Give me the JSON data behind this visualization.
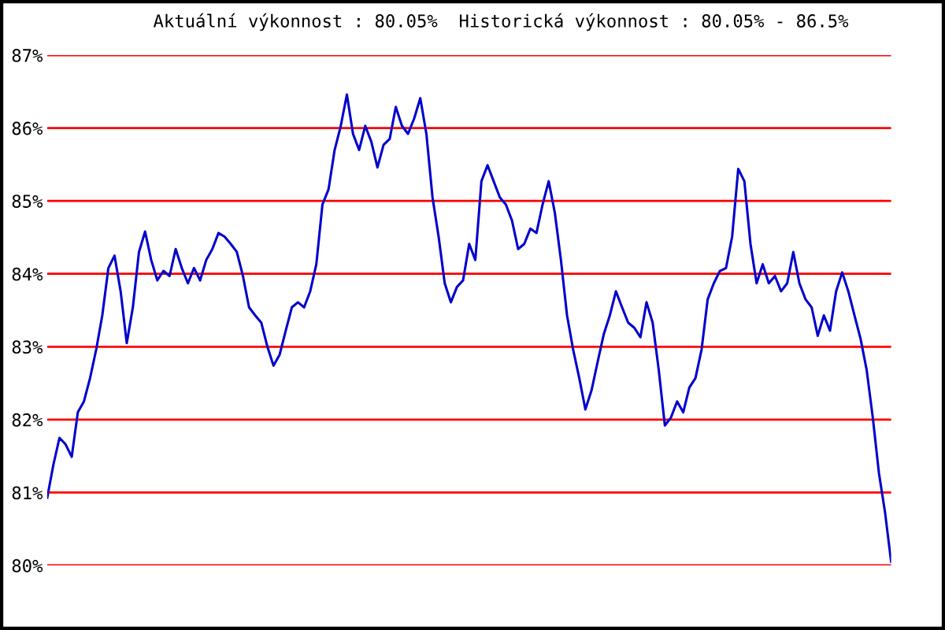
{
  "chart_data": {
    "type": "line",
    "title": "Aktuální výkonnost : 80.05%  Historická výkonnost : 80.05% - 86.5%",
    "categories": [
      null,
      null,
      null,
      null,
      null,
      null,
      null,
      null,
      null,
      null,
      null,
      null,
      null,
      null,
      null,
      null,
      null,
      null,
      null,
      null,
      null,
      null,
      null,
      null,
      null,
      null,
      null,
      null,
      null,
      null,
      null,
      null,
      null,
      null,
      null,
      null,
      null,
      null,
      null,
      null,
      null,
      null,
      null,
      null,
      null,
      null,
      null,
      null,
      null,
      null,
      null,
      null,
      null,
      null,
      null,
      null,
      null,
      null,
      null,
      null,
      null,
      null,
      null,
      null,
      null,
      null,
      null,
      null,
      null,
      null,
      null,
      null,
      null,
      null,
      null,
      null,
      null,
      null,
      null,
      null,
      null,
      null,
      null,
      null,
      null,
      null,
      null,
      null,
      null,
      null,
      null,
      null,
      null,
      null,
      null,
      null,
      null,
      null,
      null,
      null,
      null,
      null,
      null,
      null,
      null,
      null,
      null,
      null,
      null,
      null,
      null,
      null,
      null,
      null,
      null,
      null,
      null,
      null,
      null,
      null,
      null,
      null,
      null,
      null,
      null,
      null,
      null,
      null,
      null,
      null,
      null,
      null,
      null,
      null,
      null,
      null,
      null,
      null,
      null
    ],
    "series": [
      {
        "color": "#0000cc",
        "values": [
          80.93,
          81.38,
          81.75,
          81.66,
          81.49,
          82.1,
          82.25,
          82.57,
          82.96,
          83.43,
          84.08,
          84.25,
          83.76,
          83.05,
          83.54,
          84.3,
          84.58,
          84.19,
          83.91,
          84.04,
          83.97,
          84.34,
          84.08,
          83.87,
          84.08,
          83.91,
          84.19,
          84.34,
          84.56,
          84.51,
          84.41,
          84.3,
          83.97,
          83.54,
          83.43,
          83.33,
          83.0,
          82.74,
          82.89,
          83.22,
          83.54,
          83.61,
          83.54,
          83.76,
          84.13,
          84.95,
          85.16,
          85.7,
          86.03,
          86.46,
          85.92,
          85.7,
          86.03,
          85.81,
          85.46,
          85.77,
          85.85,
          86.29,
          86.03,
          85.92,
          86.13,
          86.41,
          85.92,
          85.05,
          84.51,
          83.87,
          83.61,
          83.82,
          83.91,
          84.41,
          84.19,
          85.27,
          85.49,
          85.27,
          85.05,
          84.95,
          84.73,
          84.34,
          84.41,
          84.62,
          84.56,
          84.95,
          85.27,
          84.84,
          84.19,
          83.43,
          82.96,
          82.57,
          82.14,
          82.4,
          82.79,
          83.17,
          83.43,
          83.76,
          83.54,
          83.33,
          83.26,
          83.13,
          83.61,
          83.33,
          82.68,
          81.92,
          82.03,
          82.25,
          82.1,
          82.44,
          82.57,
          82.96,
          83.65,
          83.87,
          84.04,
          84.08,
          84.51,
          85.44,
          85.27,
          84.41,
          83.87,
          84.13,
          83.87,
          83.97,
          83.76,
          83.87,
          84.3,
          83.87,
          83.65,
          83.54,
          83.15,
          83.43,
          83.22,
          83.76,
          84.02,
          83.76,
          83.43,
          83.11,
          82.68,
          82.03,
          81.27,
          80.73,
          80.05
        ]
      }
    ],
    "ylim": [
      80,
      87
    ],
    "yticks": [
      {
        "value": 80,
        "label": "80%"
      },
      {
        "value": 81,
        "label": "81%"
      },
      {
        "value": 82,
        "label": "82%"
      },
      {
        "value": 83,
        "label": "83%"
      },
      {
        "value": 84,
        "label": "84%"
      },
      {
        "value": 85,
        "label": "85%"
      },
      {
        "value": 86,
        "label": "86%"
      },
      {
        "value": 87,
        "label": "87%"
      }
    ],
    "grid": "y",
    "tick_labels": "y",
    "marker": "none",
    "line_style": "solid"
  }
}
